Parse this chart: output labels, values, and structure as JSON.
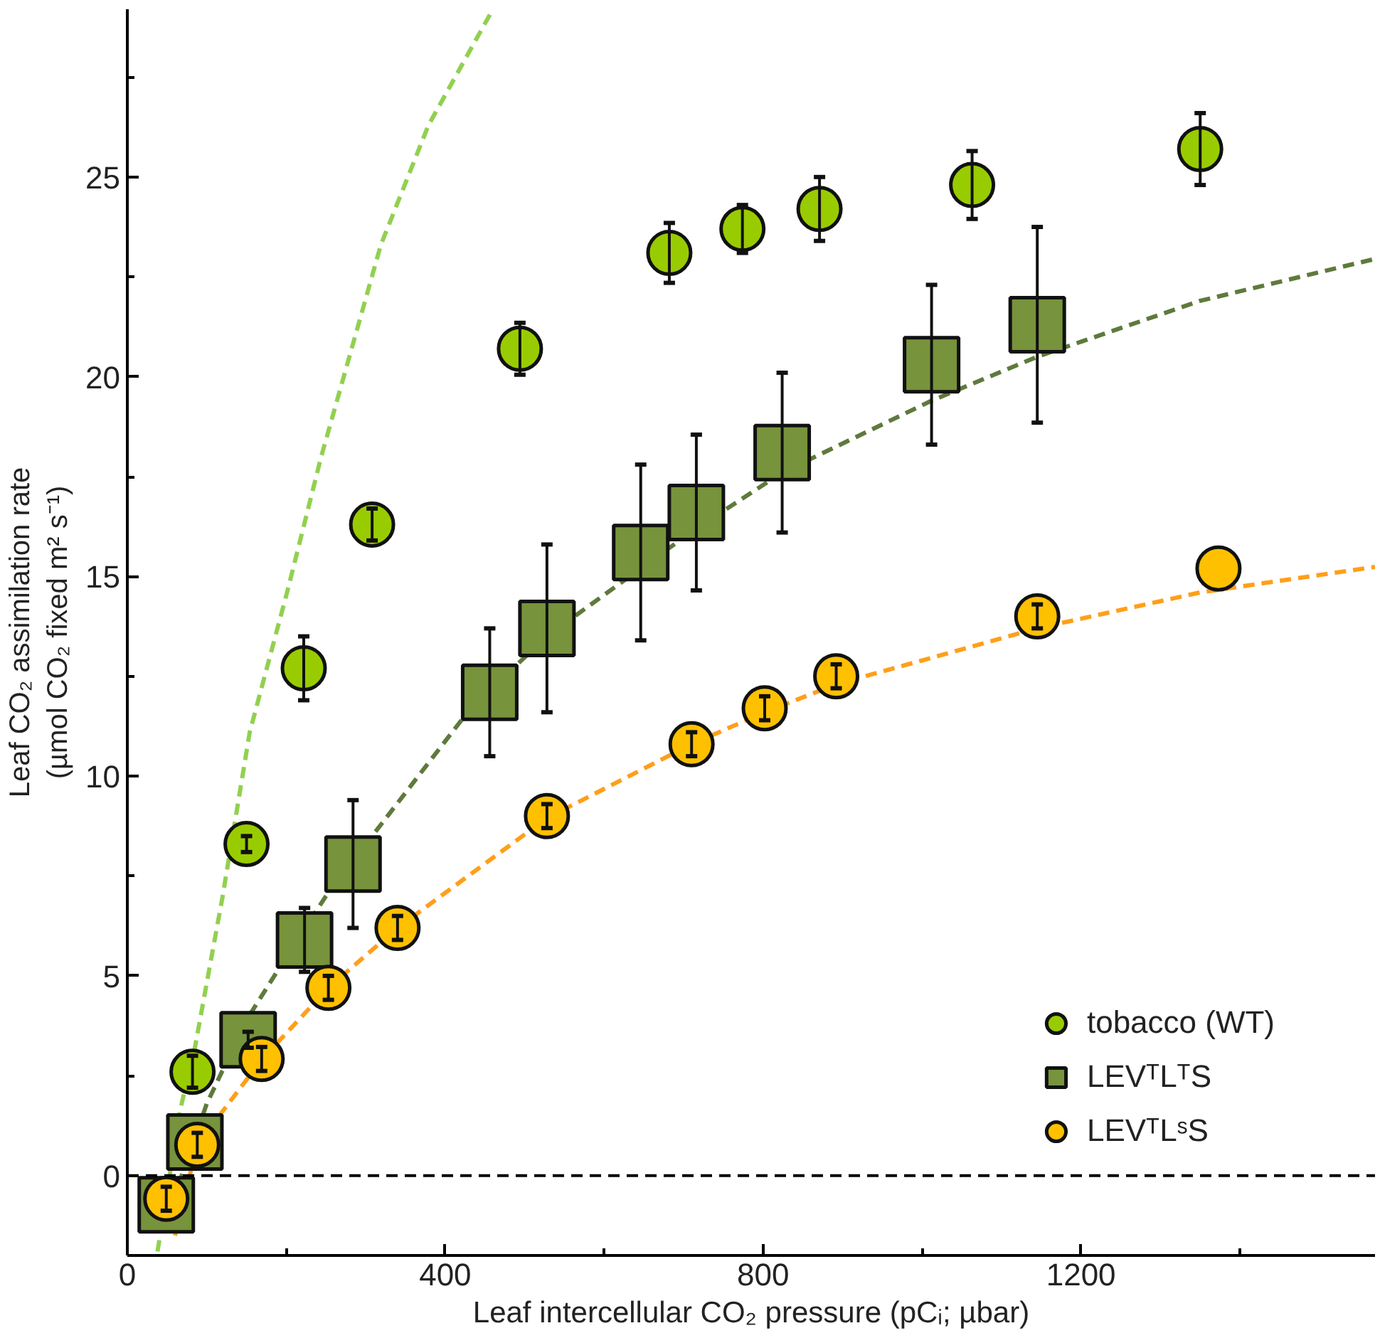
{
  "chart_data": {
    "type": "scatter",
    "xlabel": "Leaf intercellular CO₂ pressure (pCᵢ; µbar)",
    "ylabel": "Leaf CO₂ assimilation rate\n(µmol CO₂ fixed m² s⁻¹)",
    "xlim": [
      0,
      1570
    ],
    "ylim": [
      -2,
      29.2
    ],
    "xticks": [
      0,
      {
        "value": 200,
        "label": null
      },
      400,
      {
        "value": 600,
        "label": null
      },
      800,
      {
        "value": 1000,
        "label": null
      },
      1200,
      {
        "value": 1400,
        "label": null
      }
    ],
    "yticks": [
      0,
      {
        "value": 2.5,
        "label": null
      },
      5,
      {
        "value": 7.5,
        "label": null
      },
      10,
      {
        "value": 12.5,
        "label": null
      },
      15,
      {
        "value": 17.5,
        "label": null
      },
      20,
      {
        "value": 22.5,
        "label": null
      },
      25,
      {
        "value": 27.5,
        "label": null
      }
    ],
    "grid": false,
    "legend": "bottom right",
    "ref_lines": [
      {
        "axis": "y",
        "value": 0,
        "color": "#000000",
        "line_style": "dashed"
      }
    ],
    "series": [
      {
        "type": "line",
        "color": "#92d050",
        "marker": "none",
        "line_style": "dashed",
        "x": [
          38,
          66,
          85,
          120,
          154,
          201,
          244,
          319,
          379,
          460
        ],
        "values": [
          -1.9,
          1.6,
          3.2,
          7.0,
          11.1,
          14.6,
          18.0,
          23.3,
          26.3,
          29.2
        ]
      },
      {
        "type": "line",
        "color": "#5f7a3c",
        "marker": "none",
        "line_style": "dashed",
        "x": [
          49,
          100,
          150,
          201,
          250,
          308,
          432,
          528,
          646,
          716,
          824,
          1012,
          1145,
          1350,
          1570
        ],
        "values": [
          -1.1,
          1.8,
          3.9,
          5.5,
          7.0,
          8.5,
          11.7,
          13.5,
          15.2,
          16.2,
          17.6,
          19.4,
          20.5,
          21.9,
          22.95
        ]
      },
      {
        "type": "line",
        "color": "#ff9f1a",
        "marker": "none",
        "line_style": "dashed",
        "x": [
          60,
          88,
          169,
          253,
          340,
          528,
          710,
          802,
          892,
          1145,
          1350,
          1570
        ],
        "values": [
          -1.5,
          0.77,
          2.9,
          4.7,
          6.2,
          8.95,
          10.8,
          11.6,
          12.3,
          13.7,
          14.6,
          15.24
        ]
      },
      {
        "name": "tobacco (WT)",
        "color": "#99cc00",
        "marker": "circle",
        "x": [
          82,
          150,
          222,
          308,
          494,
          682,
          774,
          871,
          1063,
          1350
        ],
        "values": [
          2.6,
          8.3,
          12.7,
          16.3,
          20.7,
          23.1,
          23.7,
          24.2,
          24.8,
          25.7
        ],
        "errors": [
          0.4,
          0.2,
          0.8,
          0.4,
          0.65,
          0.75,
          0.6,
          0.8,
          0.85,
          0.9
        ]
      },
      {
        "name": "LEVᵀLᵀS",
        "color": "#77933c",
        "marker": "square",
        "x": [
          49,
          85,
          152,
          223,
          284,
          456,
          528,
          646,
          716,
          824,
          1012,
          1145
        ],
        "values": [
          -0.73,
          0.84,
          3.4,
          5.9,
          7.8,
          12.1,
          13.7,
          15.6,
          16.6,
          18.1,
          20.3,
          21.3
        ],
        "errors": [
          null,
          null,
          0.2,
          0.8,
          1.6,
          1.6,
          2.1,
          2.2,
          1.95,
          2.0,
          2.0,
          2.45
        ]
      },
      {
        "name": "LEVᵀLˢS",
        "color": "#ffc000",
        "marker": "circle",
        "x": [
          49,
          88,
          169,
          253,
          340,
          528,
          710,
          802,
          892,
          1145,
          1373
        ],
        "values": [
          -0.58,
          0.77,
          2.92,
          4.7,
          6.2,
          9.0,
          10.8,
          11.7,
          12.5,
          14.0,
          15.2
        ],
        "errors": [
          0.3,
          0.3,
          0.3,
          0.3,
          0.3,
          0.3,
          0.3,
          0.3,
          0.3,
          0.3,
          null
        ]
      }
    ]
  }
}
